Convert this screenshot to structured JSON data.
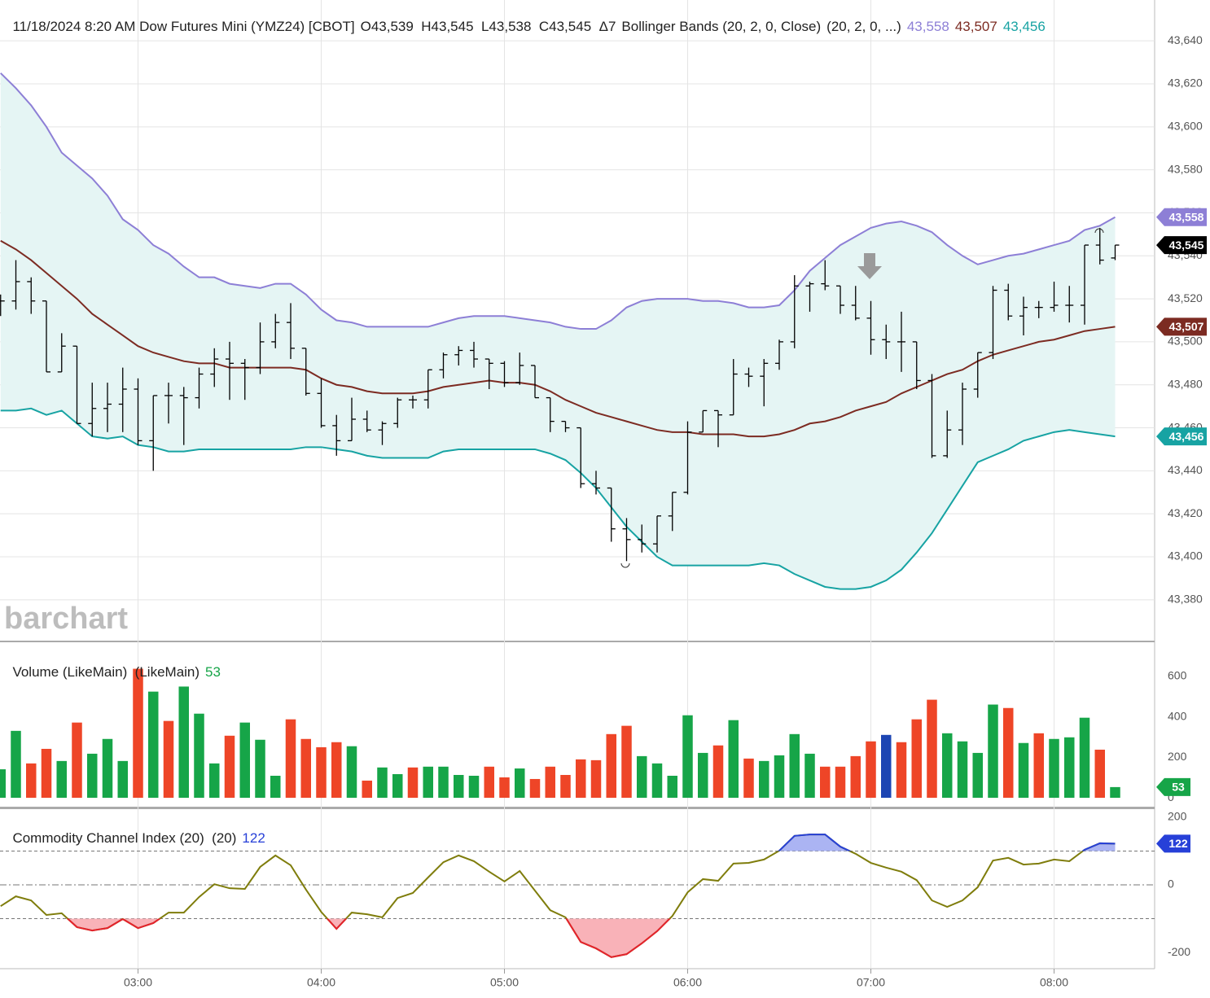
{
  "chart_data": [
    {
      "type": "ohlc",
      "title": "11/18/2024 8:20 AM Dow Futures Mini (YMZ24) [CBOT]",
      "summary": "O43,539  H43,545  L43,538  C43,545  Δ7",
      "indicator": "Bollinger Bands (20, 2, 0, Close)",
      "indicator_params": "(20, 2, 0, ...)",
      "watermark": "barchart",
      "color": "#000000",
      "last_label": "43,545",
      "band_fill": "#e5f5f4",
      "open": [
        43519,
        43519,
        43528,
        43519,
        43486,
        43498,
        43462,
        43469,
        43471,
        43478,
        43454,
        43475,
        43475,
        43474,
        43485,
        43492,
        43490,
        43488,
        43500,
        43509,
        43497,
        43476,
        43461,
        43454,
        43464,
        43459,
        43462,
        43473,
        43473,
        43487,
        43494,
        43496,
        43492,
        43490,
        43481,
        43489,
        43474,
        43463,
        43460,
        43434,
        43432,
        43413,
        43408,
        43406,
        43419,
        43430,
        43458,
        43468,
        43466,
        43485,
        43484,
        43490,
        43500,
        43526,
        43527,
        43526,
        43517,
        43511,
        43501,
        43500,
        43500,
        43482,
        43447,
        43459,
        43478,
        43495,
        43524,
        43512,
        43516,
        43516,
        43517,
        43517,
        43545,
        43539
      ],
      "high": [
        43522,
        43538,
        43530,
        43519,
        43504,
        43498,
        43481,
        43481,
        43488,
        43483,
        43475,
        43481,
        43479,
        43488,
        43497,
        43500,
        43492,
        43509,
        43513,
        43518,
        43497,
        43483,
        43466,
        43474,
        43468,
        43463,
        43474,
        43475,
        43487,
        43495,
        43498,
        43500,
        43492,
        43491,
        43495,
        43489,
        43474,
        43463,
        43460,
        43440,
        43432,
        43418,
        43415,
        43419,
        43430,
        43463,
        43468,
        43468,
        43492,
        43488,
        43492,
        43501,
        43531,
        43528,
        43538,
        43526,
        43526,
        43519,
        43508,
        43514,
        43500,
        43485,
        43468,
        43481,
        43495,
        43526,
        43527,
        43521,
        43519,
        43528,
        43526,
        43545,
        43553,
        43545
      ],
      "low": [
        43512,
        43515,
        43513,
        43486,
        43486,
        43462,
        43456,
        43458,
        43458,
        43452,
        43440,
        43462,
        43452,
        43469,
        43479,
        43473,
        43473,
        43485,
        43497,
        43492,
        43475,
        43460,
        43447,
        43454,
        43458,
        43452,
        43460,
        43469,
        43469,
        43483,
        43489,
        43488,
        43478,
        43479,
        43480,
        43474,
        43458,
        43458,
        43432,
        43429,
        43407,
        43398,
        43402,
        43402,
        43412,
        43429,
        43458,
        43451,
        43466,
        43479,
        43470,
        43487,
        43497,
        43514,
        43524,
        43513,
        43510,
        43494,
        43492,
        43486,
        43478,
        43446,
        43446,
        43452,
        43474,
        43492,
        43510,
        43503,
        43511,
        43514,
        43509,
        43508,
        43536,
        43538
      ],
      "close": [
        43519,
        43528,
        43519,
        43486,
        43498,
        43462,
        43469,
        43471,
        43478,
        43454,
        43475,
        43475,
        43474,
        43485,
        43492,
        43490,
        43488,
        43500,
        43509,
        43497,
        43476,
        43461,
        43454,
        43464,
        43459,
        43462,
        43473,
        43473,
        43487,
        43494,
        43496,
        43492,
        43490,
        43481,
        43489,
        43474,
        43463,
        43460,
        43434,
        43432,
        43413,
        43408,
        43406,
        43419,
        43430,
        43458,
        43468,
        43466,
        43485,
        43484,
        43490,
        43500,
        43526,
        43527,
        43526,
        43517,
        43511,
        43501,
        43500,
        43500,
        43482,
        43447,
        43459,
        43478,
        43495,
        43524,
        43512,
        43516,
        43516,
        43517,
        43517,
        43545,
        43538,
        43545
      ],
      "series": [
        {
          "color": "#8d7fd6",
          "last_label": "43,558",
          "values": [
            43625,
            43618,
            43610,
            43600,
            43588,
            43582,
            43576,
            43568,
            43557,
            43552,
            43545,
            43541,
            43535,
            43530,
            43530,
            43527,
            43526,
            43525,
            43527,
            43527,
            43522,
            43515,
            43510,
            43509,
            43507,
            43507,
            43507,
            43507,
            43507,
            43509,
            43511,
            43512,
            43512,
            43512,
            43511,
            43510,
            43509,
            43507,
            43506,
            43506,
            43510,
            43516,
            43519,
            43520,
            43520,
            43520,
            43519,
            43519,
            43518,
            43516,
            43516,
            43517,
            43524,
            43533,
            43539,
            43545,
            43549,
            43553,
            43555,
            43556,
            43554,
            43551,
            43545,
            43540,
            43536,
            43538,
            43540,
            43541,
            43543,
            43545,
            43547,
            43552,
            43554,
            43558
          ]
        },
        {
          "color": "#7c2b22",
          "last_label": "43,507",
          "values": [
            43547,
            43543,
            43538,
            43532,
            43526,
            43520,
            43513,
            43508,
            43503,
            43498,
            43495,
            43493,
            43491,
            43490,
            43490,
            43488,
            43488,
            43488,
            43488,
            43488,
            43487,
            43483,
            43480,
            43479,
            43477,
            43476,
            43476,
            43476,
            43477,
            43479,
            43480,
            43481,
            43482,
            43481,
            43481,
            43480,
            43477,
            43473,
            43470,
            43467,
            43465,
            43463,
            43461,
            43459,
            43458,
            43458,
            43457,
            43457,
            43457,
            43456,
            43456,
            43457,
            43459,
            43462,
            43463,
            43465,
            43468,
            43470,
            43472,
            43476,
            43479,
            43482,
            43485,
            43487,
            43491,
            43494,
            43496,
            43498,
            43500,
            43501,
            43503,
            43505,
            43506,
            43507
          ]
        },
        {
          "color": "#17a3a3",
          "last_label": "43,456",
          "values": [
            43468,
            43468,
            43469,
            43466,
            43468,
            43462,
            43456,
            43455,
            43456,
            43452,
            43451,
            43449,
            43449,
            43450,
            43450,
            43450,
            43450,
            43450,
            43450,
            43450,
            43451,
            43451,
            43450,
            43449,
            43447,
            43446,
            43446,
            43446,
            43446,
            43449,
            43450,
            43450,
            43450,
            43450,
            43450,
            43450,
            43448,
            43445,
            43439,
            43432,
            43423,
            43414,
            43407,
            43400,
            43396,
            43396,
            43396,
            43396,
            43396,
            43396,
            43397,
            43396,
            43392,
            43389,
            43386,
            43385,
            43385,
            43386,
            43389,
            43394,
            43402,
            43411,
            43422,
            43433,
            43444,
            43447,
            43450,
            43454,
            43456,
            43458,
            43459,
            43458,
            43457,
            43456
          ]
        }
      ],
      "ylim": [
        43361,
        43659
      ],
      "yticks": [
        {
          "value": 43380,
          "label": "43,380"
        },
        {
          "value": 43400,
          "label": "43,400"
        },
        {
          "value": 43420,
          "label": "43,420"
        },
        {
          "value": 43440,
          "label": "43,440"
        },
        {
          "value": 43460,
          "label": "43,460"
        },
        {
          "value": 43480,
          "label": "43,480"
        },
        {
          "value": 43500,
          "label": "43,500"
        },
        {
          "value": 43520,
          "label": "43,520"
        },
        {
          "value": 43540,
          "label": "43,540"
        },
        {
          "value": 43560,
          "label": "43,560"
        },
        {
          "value": 43580,
          "label": "43,580"
        },
        {
          "value": 43600,
          "label": "43,600"
        },
        {
          "value": 43620,
          "label": "43,620"
        },
        {
          "value": 43640,
          "label": "43,640"
        }
      ],
      "grid": true
    },
    {
      "type": "bar",
      "title": "Volume (LikeMain)  (LikeMain)",
      "values": [
        141,
        331,
        170,
        242,
        182,
        372,
        218,
        291,
        182,
        638,
        525,
        380,
        550,
        416,
        170,
        307,
        372,
        287,
        109,
        388,
        291,
        250,
        275,
        255,
        85,
        150,
        117,
        150,
        154,
        154,
        113,
        109,
        154,
        101,
        145,
        93,
        154,
        113,
        190,
        186,
        315,
        356,
        206,
        170,
        109,
        408,
        222,
        259,
        384,
        194,
        182,
        210,
        315,
        218,
        154,
        154,
        206,
        279,
        311,
        275,
        388,
        485,
        319,
        279,
        222,
        461,
        444,
        271,
        319,
        291,
        299,
        396,
        238,
        53
      ],
      "colors": [
        "#16a548",
        "#16a548",
        "#ee4527",
        "#ee4527",
        "#16a548",
        "#ee4527",
        "#16a548",
        "#16a548",
        "#16a548",
        "#ee4527",
        "#16a548",
        "#ee4527",
        "#16a548",
        "#16a548",
        "#16a548",
        "#ee4527",
        "#16a548",
        "#16a548",
        "#16a548",
        "#ee4527",
        "#ee4527",
        "#ee4527",
        "#ee4527",
        "#16a548",
        "#ee4527",
        "#16a548",
        "#16a548",
        "#ee4527",
        "#16a548",
        "#16a548",
        "#16a548",
        "#16a548",
        "#ee4527",
        "#ee4527",
        "#16a548",
        "#ee4527",
        "#ee4527",
        "#ee4527",
        "#ee4527",
        "#ee4527",
        "#ee4527",
        "#ee4527",
        "#16a548",
        "#16a548",
        "#16a548",
        "#16a548",
        "#16a548",
        "#ee4527",
        "#16a548",
        "#ee4527",
        "#16a548",
        "#16a548",
        "#16a548",
        "#16a548",
        "#ee4527",
        "#ee4527",
        "#ee4527",
        "#ee4527",
        "#1d45b3",
        "#ee4527",
        "#ee4527",
        "#ee4527",
        "#16a548",
        "#16a548",
        "#16a548",
        "#16a548",
        "#ee4527",
        "#16a548",
        "#ee4527",
        "#16a548",
        "#16a548",
        "#16a548",
        "#ee4527",
        "#16a548"
      ],
      "ylim": [
        -48,
        769
      ],
      "yticks": [
        0,
        200,
        400,
        600
      ]
    },
    {
      "type": "line",
      "title": "Commodity Channel Index (20)  (20)",
      "categories": [
        null,
        null,
        null,
        null,
        null,
        null,
        null,
        null,
        null,
        "03:00",
        null,
        null,
        null,
        null,
        null,
        null,
        null,
        null,
        null,
        null,
        null,
        "04:00",
        null,
        null,
        null,
        null,
        null,
        null,
        null,
        null,
        null,
        null,
        null,
        "05:00",
        null,
        null,
        null,
        null,
        null,
        null,
        null,
        null,
        null,
        null,
        null,
        "06:00",
        null,
        null,
        null,
        null,
        null,
        null,
        null,
        null,
        null,
        null,
        null,
        "07:00",
        null,
        null,
        null,
        null,
        null,
        null,
        null,
        null,
        null,
        null,
        null,
        "08:00",
        null,
        null,
        null,
        null
      ],
      "values": [
        -63,
        -34,
        -46,
        -89,
        -84,
        -125,
        -135,
        -128,
        -101,
        -128,
        -113,
        -82,
        -82,
        -36,
        2,
        -10,
        -12,
        53,
        87,
        58,
        -14,
        -80,
        -130,
        -82,
        -87,
        -96,
        -39,
        -24,
        22,
        67,
        87,
        70,
        39,
        10,
        41,
        -17,
        -75,
        -96,
        -169,
        -188,
        -214,
        -205,
        -173,
        -137,
        -92,
        -22,
        17,
        12,
        63,
        65,
        75,
        101,
        145,
        149,
        149,
        113,
        92,
        65,
        51,
        39,
        14,
        -46,
        -65,
        -46,
        -7,
        72,
        80,
        60,
        63,
        75,
        70,
        104,
        123,
        122
      ],
      "color": "#7f7d0c",
      "levels": [
        -100,
        0,
        100
      ],
      "over_color": "#2740d8",
      "under_color": "#e5212d",
      "over_fill": "#abb4f3",
      "under_fill": "#f9b2b8",
      "ylim": [
        -248,
        224
      ],
      "yticks": [
        -200,
        0,
        200
      ]
    }
  ]
}
